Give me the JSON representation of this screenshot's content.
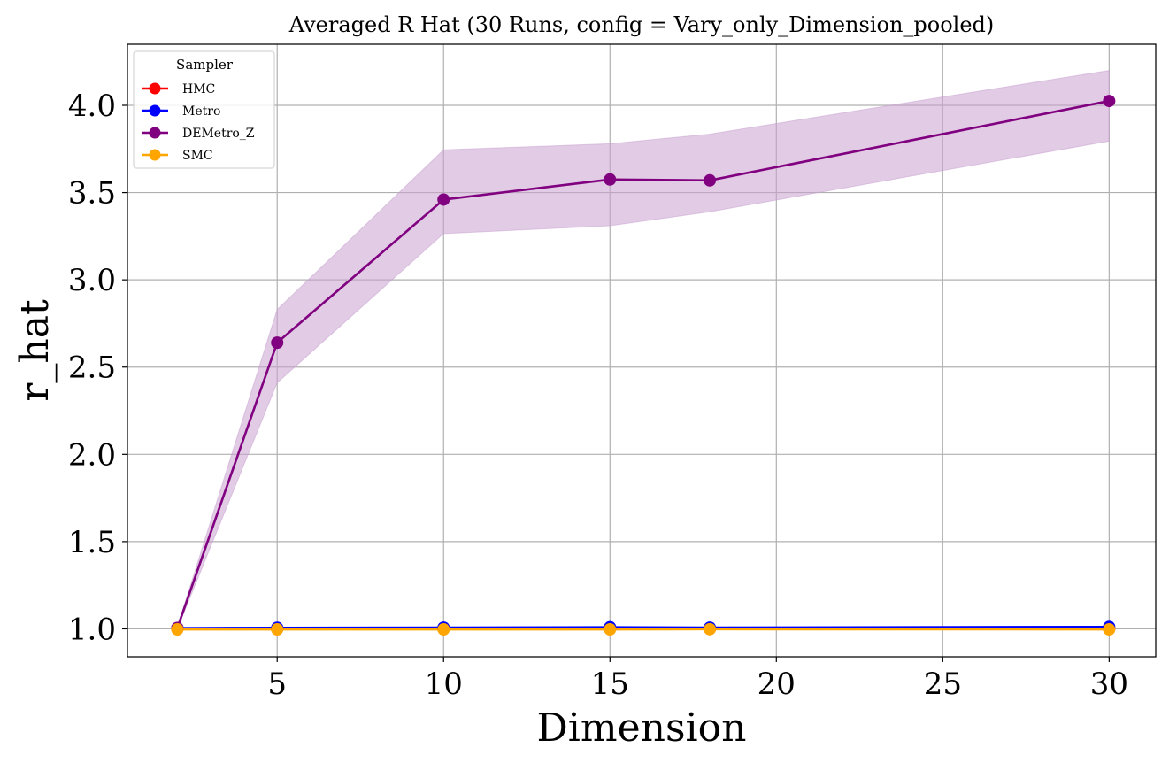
{
  "chart_data": {
    "type": "line",
    "title": "Averaged R Hat (30 Runs, config = Vary_only_Dimension_pooled)",
    "xlabel": "Dimension",
    "ylabel": "r_hat",
    "xlim": [
      0.5,
      31.4
    ],
    "ylim": [
      0.84,
      4.35
    ],
    "xticks": [
      5,
      10,
      15,
      20,
      25,
      30
    ],
    "yticks": [
      1.0,
      1.5,
      2.0,
      2.5,
      3.0,
      3.5,
      4.0
    ],
    "grid": true,
    "legend_title": "Sampler",
    "legend_placement": "top-left",
    "x": [
      2,
      5,
      10,
      15,
      18,
      30
    ],
    "series": [
      {
        "name": "HMC",
        "color": "#ff0000",
        "values": [
          1.0,
          1.001,
          1.001,
          1.002,
          1.001,
          1.003
        ],
        "band_lower": [
          1.0,
          1.0,
          1.0,
          1.0,
          1.0,
          1.0
        ],
        "band_upper": [
          1.0,
          1.002,
          1.002,
          1.004,
          1.002,
          1.006
        ]
      },
      {
        "name": "Metro",
        "color": "#0000ff",
        "values": [
          1.004,
          1.006,
          1.007,
          1.009,
          1.007,
          1.011
        ],
        "band_lower": [
          1.002,
          1.004,
          1.005,
          1.006,
          1.005,
          1.008
        ],
        "band_upper": [
          1.006,
          1.008,
          1.009,
          1.012,
          1.009,
          1.014
        ]
      },
      {
        "name": "DEMetro_Z",
        "color": "#800080",
        "values": [
          1.005,
          2.64,
          3.46,
          3.575,
          3.57,
          4.025
        ],
        "band_lower": [
          1.0,
          2.41,
          3.265,
          3.31,
          3.39,
          3.795
        ],
        "band_upper": [
          1.01,
          2.83,
          3.745,
          3.78,
          3.835,
          4.2
        ],
        "band_color": "#c8a0cf"
      },
      {
        "name": "SMC",
        "color": "#ffa500",
        "values": [
          0.997,
          0.997,
          0.997,
          0.997,
          0.998,
          0.997
        ],
        "band_lower": [
          0.996,
          0.996,
          0.996,
          0.996,
          0.997,
          0.996
        ],
        "band_upper": [
          0.998,
          0.998,
          0.998,
          0.998,
          0.999,
          0.998
        ]
      }
    ]
  }
}
